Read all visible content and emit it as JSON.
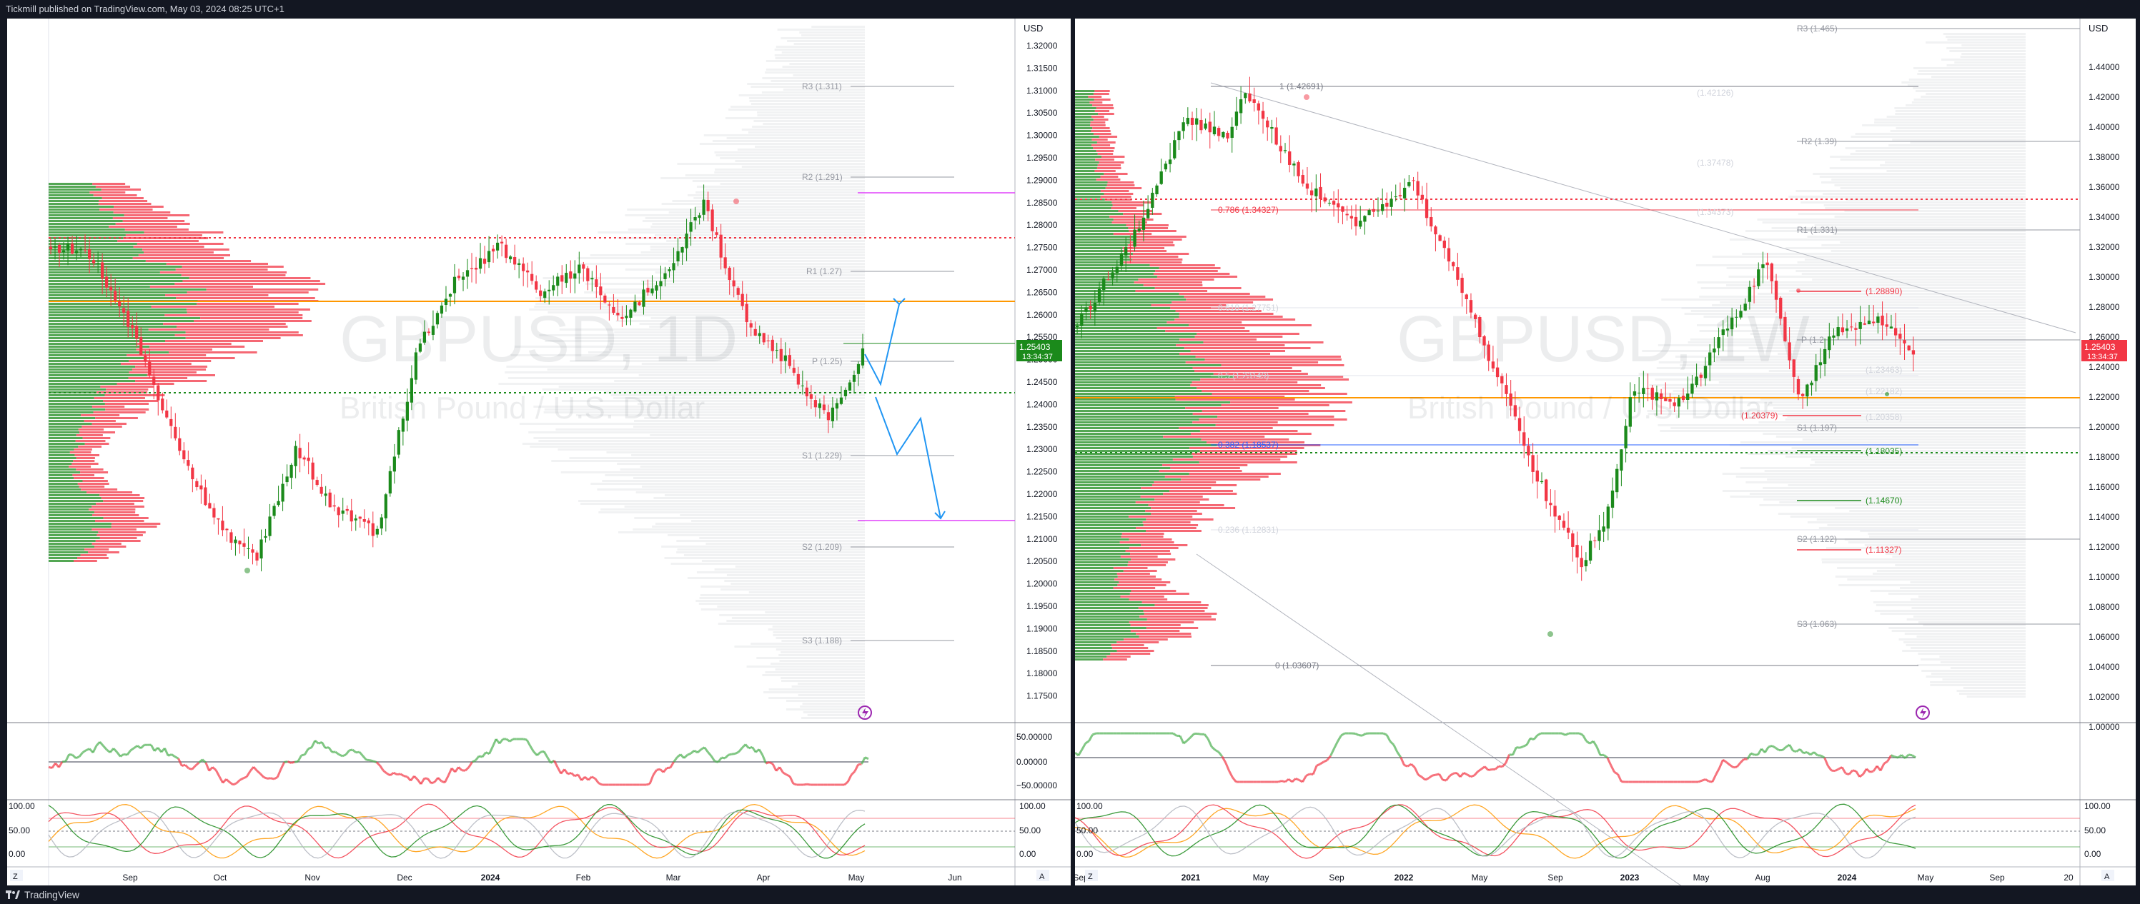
{
  "header": {
    "publisher": "Tickmill published on TradingView.com, May 03, 2024 08:25 UTC+1"
  },
  "footer": {
    "brand": "TradingView"
  },
  "left_chart": {
    "watermark_symbol": "GBPUSD, 1D",
    "watermark_name": "British Pound / U.S. Dollar",
    "currency": "USD",
    "price_ticks": [
      "1.32000",
      "1.31500",
      "1.31000",
      "1.30500",
      "1.30000",
      "1.29500",
      "1.29000",
      "1.28500",
      "1.28000",
      "1.27500",
      "1.27000",
      "1.26500",
      "1.26000",
      "1.25500",
      "1.25000",
      "1.24500",
      "1.24000",
      "1.23500",
      "1.23000",
      "1.22500",
      "1.22000",
      "1.21500",
      "1.21000",
      "1.20500",
      "1.20000",
      "1.19500",
      "1.19000",
      "1.18500",
      "1.18000",
      "1.17500"
    ],
    "last_price": "1.25403",
    "countdown": "13:34:37",
    "time_labels": [
      "Sep",
      "Oct",
      "Nov",
      "Dec",
      "2024",
      "Feb",
      "Mar",
      "Apr",
      "May",
      "Jun"
    ],
    "pivots": [
      "R3 (1.311)",
      "R2 (1.291)",
      "R1 (1.27)",
      "P (1.25)",
      "S1 (1.229)",
      "S2 (1.209)",
      "S3 (1.188)"
    ],
    "osc1_ticks": [
      "50.00000",
      "0.00000",
      "−50.00000"
    ],
    "osc2_ticks": [
      "100.00",
      "50.00",
      "0.00"
    ],
    "osc2_left_ticks": [
      "100.00",
      "50.00",
      "0.00"
    ],
    "z_button": "Z",
    "a_button": "A"
  },
  "right_chart": {
    "watermark_symbol": "GBPUSD, 1W",
    "watermark_name": "British Pound / U.S. Dollar",
    "currency": "USD",
    "price_ticks": [
      "1.44000",
      "1.42000",
      "1.40000",
      "1.38000",
      "1.36000",
      "1.34000",
      "1.32000",
      "1.30000",
      "1.28000",
      "1.26000",
      "1.24000",
      "1.22000",
      "1.20000",
      "1.18000",
      "1.16000",
      "1.14000",
      "1.12000",
      "1.10000",
      "1.08000",
      "1.06000",
      "1.04000",
      "1.02000",
      "1.00000"
    ],
    "last_price": "1.25403",
    "countdown": "13:34:37",
    "time_labels": [
      "Sep",
      "2021",
      "May",
      "Sep",
      "2022",
      "May",
      "Sep",
      "2023",
      "May",
      "Aug",
      "2024",
      "May",
      "Sep",
      "20"
    ],
    "pivots": [
      "R3 (1.465)",
      "R2 (1.39)",
      "R1 (1.331)",
      "P (1.2",
      "S1 (1.197)",
      "S2 (1.122)",
      "S3 (1.063)"
    ],
    "fib_levels": [
      "1 (1.42691)",
      "0.786 (1.34327)",
      "0.618 (1.27751)",
      "0.5 (1.23149)",
      "0.382 (1.18537)",
      "0.236 (1.12831)",
      "0 (1.03607)"
    ],
    "right_levels": [
      "(1.42126)",
      "(1.37478)",
      "(1.34373)",
      "(1.28890)",
      "(1.23463)",
      "(1.22182)",
      "(1.20358)",
      "(1.20379)",
      "(1.18035)",
      "(1.14670)",
      "(1.11327)"
    ],
    "osc2_ticks": [
      "100.00",
      "50.00",
      "0.00"
    ],
    "z_button": "Z",
    "a_button": "A"
  },
  "colors": {
    "bull": "#089981",
    "green": "#1b8a1b",
    "bear": "#f23645",
    "orange": "#ff9800",
    "magenta": "#e040fb",
    "blue": "#2196f3"
  }
}
